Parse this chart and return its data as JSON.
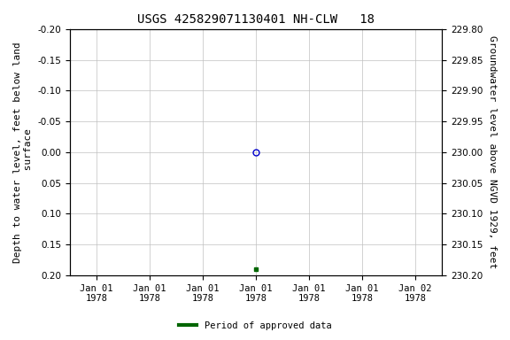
{
  "title": "USGS 425829071130401 NH-CLW   18",
  "ylabel_left": "Depth to water level, feet below land\n surface",
  "ylabel_right": "Groundwater level above NGVD 1929, feet",
  "ylim_left": [
    -0.2,
    0.2
  ],
  "ylim_right": [
    230.2,
    229.8
  ],
  "yticks_left": [
    -0.2,
    -0.15,
    -0.1,
    -0.05,
    0.0,
    0.05,
    0.1,
    0.15,
    0.2
  ],
  "yticks_right": [
    230.2,
    230.15,
    230.1,
    230.05,
    230.0,
    229.95,
    229.9,
    229.85,
    229.8
  ],
  "data_point_unapproved": {
    "date": "1978-01-01",
    "value": 0.0
  },
  "data_point_approved": {
    "date": "1978-01-01",
    "value": 0.19
  },
  "unapproved_color": "#0000cc",
  "approved_color": "#006600",
  "background_color": "#ffffff",
  "grid_color": "#c0c0c0",
  "title_fontsize": 10,
  "axis_label_fontsize": 8,
  "tick_fontsize": 7.5,
  "legend_label": "Period of approved data",
  "xtick_labels": [
    "Jan 01\n1978",
    "Jan 01\n1978",
    "Jan 01\n1978",
    "Jan 01\n1978",
    "Jan 01\n1978",
    "Jan 01\n1978",
    "Jan 02\n1978"
  ],
  "xtick_positions": [
    0,
    1,
    2,
    3,
    4,
    5,
    6
  ]
}
